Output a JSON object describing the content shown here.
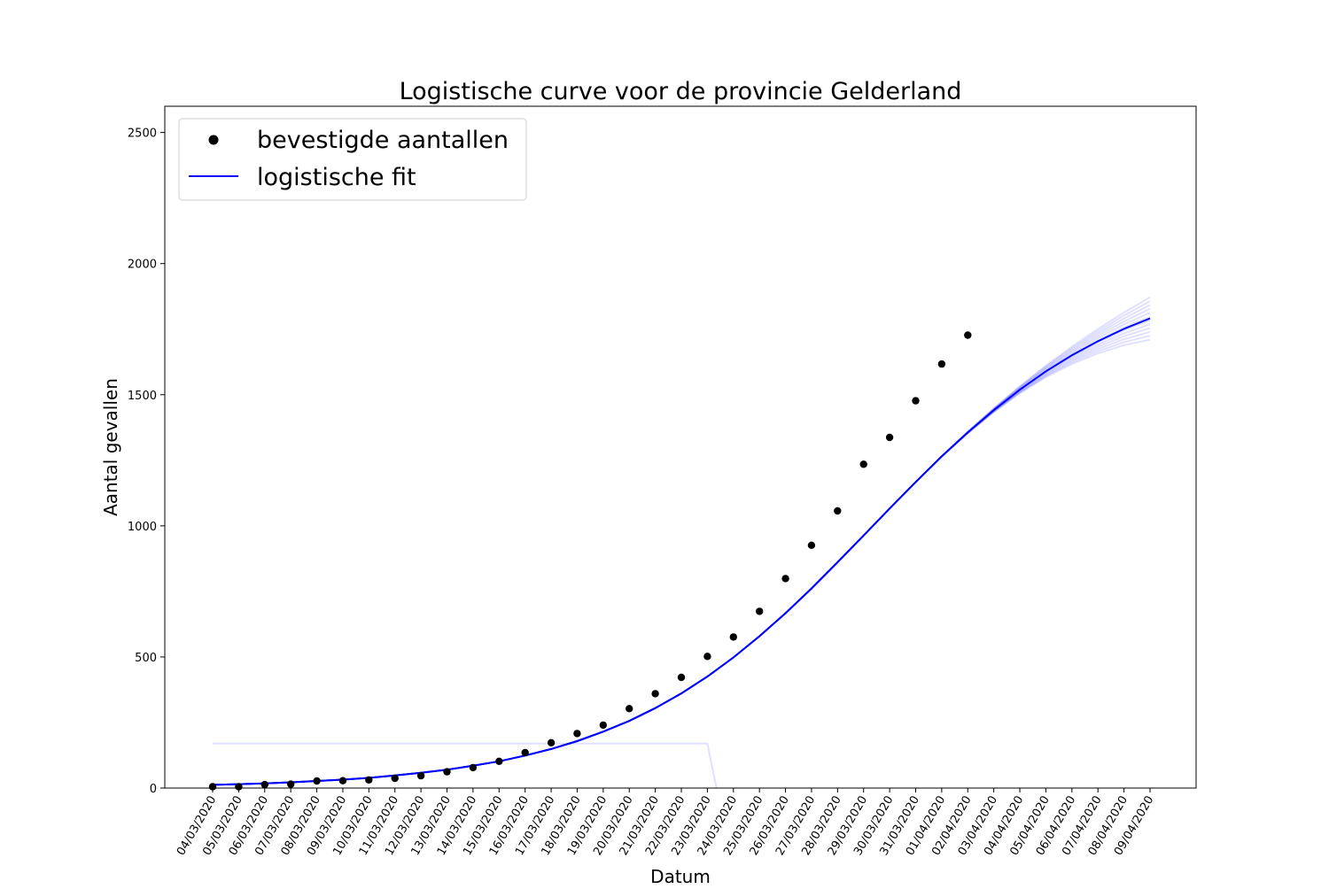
{
  "chart_data": {
    "type": "line",
    "title": "Logistische curve voor de provincie Gelderland",
    "xlabel": "Datum",
    "ylabel": "Aantal gevallen",
    "ylim": [
      0,
      2600
    ],
    "y_ticks": [
      0,
      500,
      1000,
      1500,
      2000,
      2500
    ],
    "grid": false,
    "legend_position": "top-left",
    "x": [
      "04/03/2020",
      "05/03/2020",
      "06/03/2020",
      "07/03/2020",
      "08/03/2020",
      "09/03/2020",
      "10/03/2020",
      "11/03/2020",
      "12/03/2020",
      "13/03/2020",
      "14/03/2020",
      "15/03/2020",
      "16/03/2020",
      "17/03/2020",
      "18/03/2020",
      "19/03/2020",
      "20/03/2020",
      "21/03/2020",
      "22/03/2020",
      "23/03/2020",
      "24/03/2020",
      "25/03/2020",
      "26/03/2020",
      "27/03/2020",
      "28/03/2020",
      "29/03/2020",
      "30/03/2020",
      "31/03/2020",
      "01/04/2020",
      "02/04/2020",
      "03/04/2020",
      "04/04/2020",
      "05/04/2020",
      "06/04/2020",
      "07/04/2020",
      "08/04/2020",
      "09/04/2020"
    ],
    "series": [
      {
        "name": "bevestigde aantallen",
        "kind": "scatter",
        "color": "#000000",
        "values": [
          5,
          5,
          13,
          15,
          27,
          28,
          31,
          37,
          47,
          62,
          78,
          102,
          135,
          173,
          208,
          240,
          303,
          360,
          422,
          502,
          576,
          674,
          799,
          926,
          1057,
          1235,
          1337,
          1477,
          1617,
          1727
        ]
      },
      {
        "name": "logistische fit",
        "kind": "line",
        "color": "#0000ff",
        "values": [
          12,
          15,
          18,
          22,
          27,
          32,
          39,
          48,
          58,
          70,
          85,
          102,
          124,
          149,
          179,
          215,
          256,
          305,
          361,
          425,
          498,
          579,
          667,
          761,
          861,
          963,
          1066,
          1167,
          1265,
          1356,
          1441,
          1519,
          1589,
          1650,
          1704,
          1751,
          1791
        ]
      }
    ],
    "ensemble": {
      "color": "#0000ff",
      "opacity": 0.12,
      "count": 12
    }
  }
}
